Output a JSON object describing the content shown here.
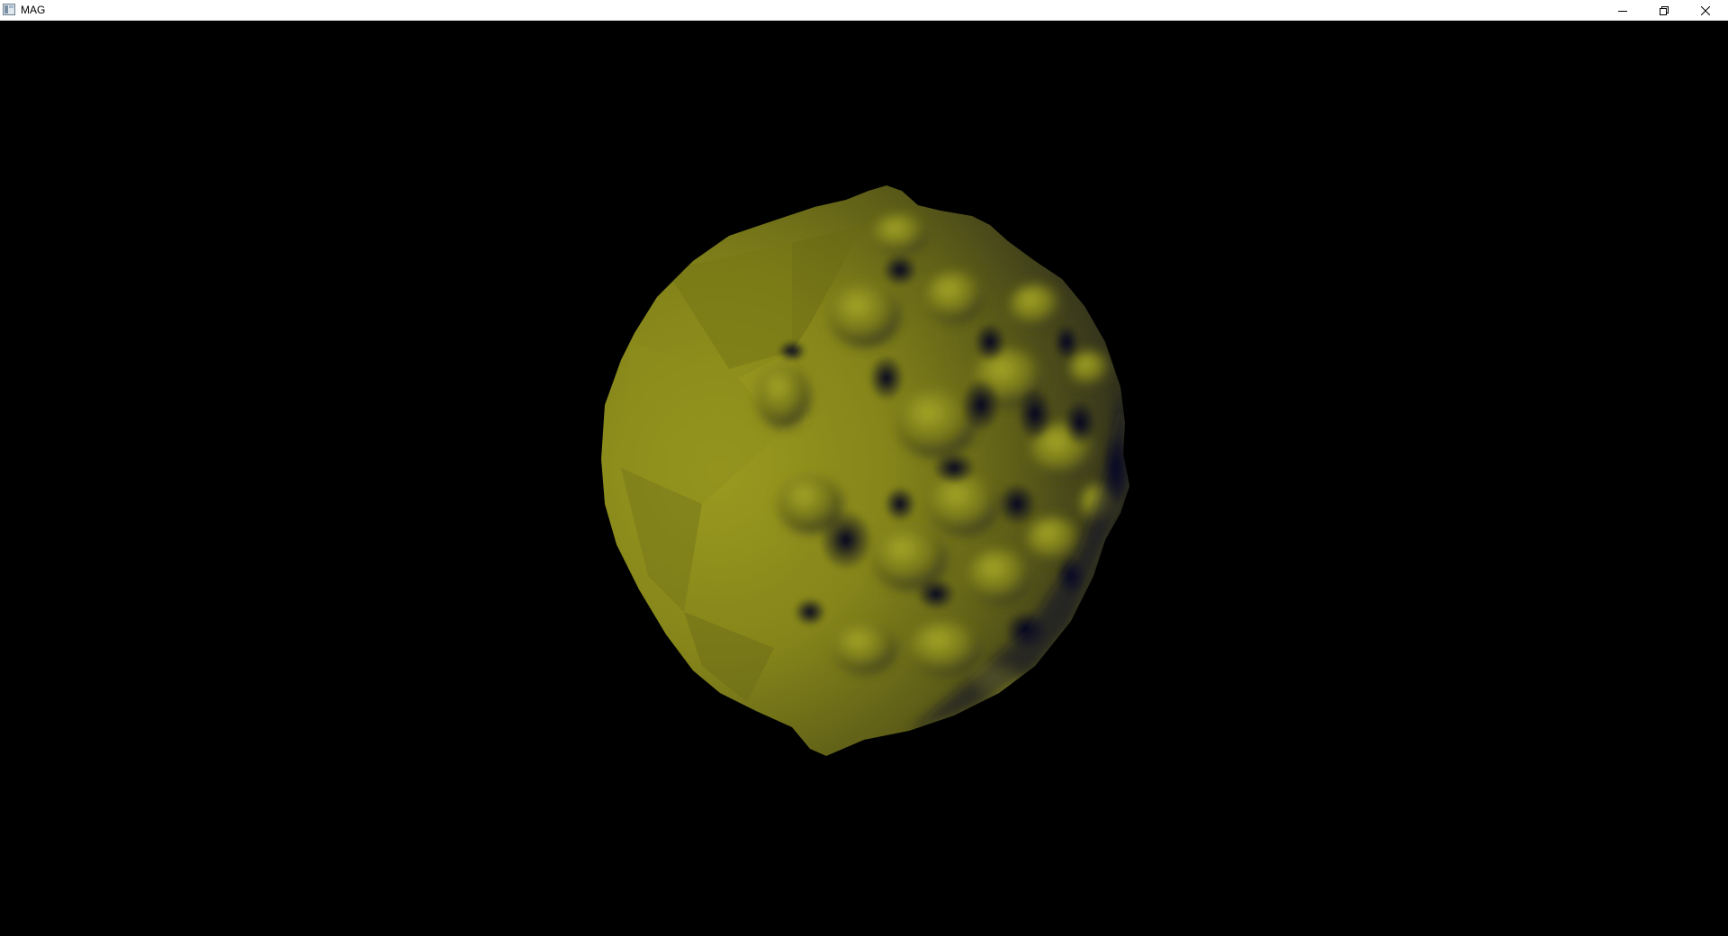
{
  "window": {
    "title": "MAG",
    "icon": "app-window-icon"
  },
  "caption_buttons": [
    {
      "name": "minimize",
      "icon": "minimize-icon"
    },
    {
      "name": "restore",
      "icon": "restore-icon"
    },
    {
      "name": "close",
      "icon": "close-icon"
    }
  ],
  "scene": {
    "object": "3d-blob-mesh",
    "background_color": "#000000",
    "object_color": "#8a8a1c",
    "shadow_color": "#0a0a2a"
  }
}
